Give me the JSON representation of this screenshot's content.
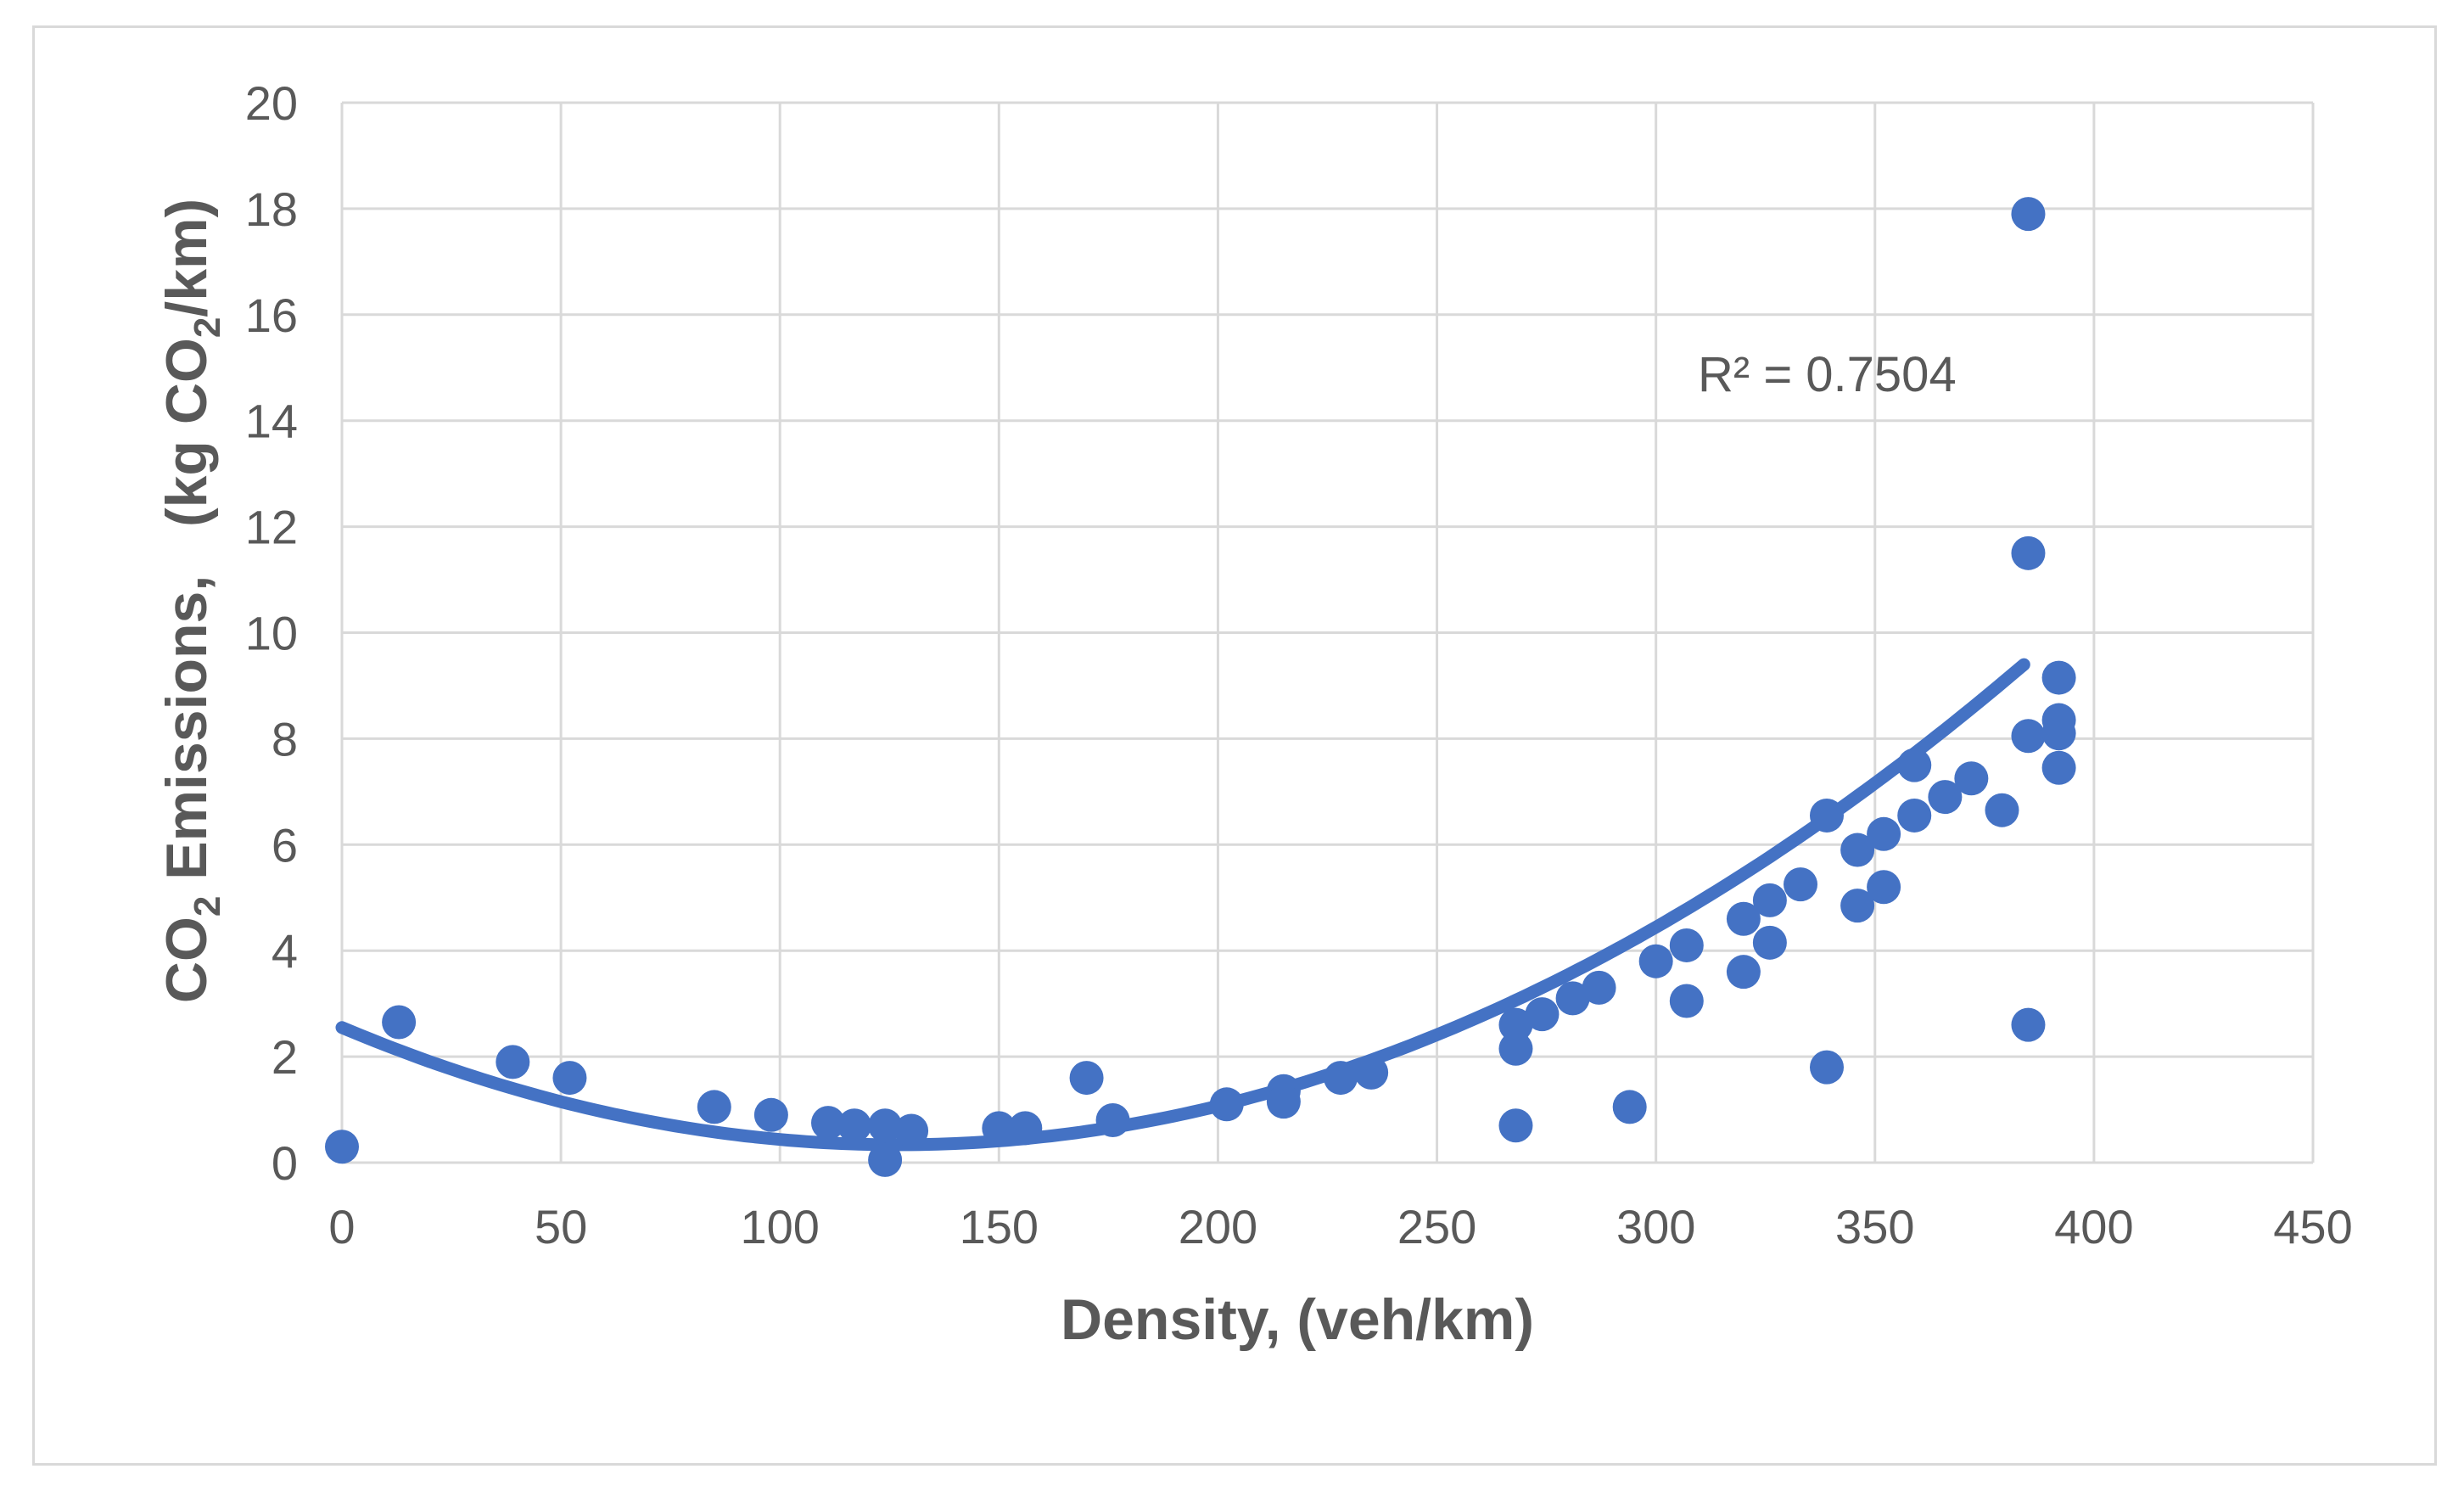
{
  "chart_data": {
    "type": "scatter",
    "title": "",
    "xlabel": "Density,  (veh/km)",
    "ylabel": {
      "prefix": "CO",
      "sub1": "2",
      "middle": " Emissions,   (kg CO",
      "sub2": "2",
      "suffix": "/km)"
    },
    "xlim": [
      0,
      450
    ],
    "ylim": [
      0,
      20
    ],
    "x_ticks": [
      "0",
      "50",
      "100",
      "150",
      "200",
      "250",
      "300",
      "350",
      "400",
      "450"
    ],
    "y_ticks": [
      "0",
      "2",
      "4",
      "6",
      "8",
      "10",
      "12",
      "14",
      "16",
      "18",
      "20"
    ],
    "grid": true,
    "series_color": "#4472c4",
    "annotation": "R² = 0.7504",
    "trendline": {
      "type": "polynomial-2",
      "coeffs": [
        0.0001372,
        -0.03485,
        2.55
      ],
      "x_range": [
        0,
        385
      ]
    },
    "points": [
      [
        0,
        0.3
      ],
      [
        13,
        2.65
      ],
      [
        39,
        1.9
      ],
      [
        52,
        1.6
      ],
      [
        85,
        1.05
      ],
      [
        98,
        0.9
      ],
      [
        111,
        0.75
      ],
      [
        117,
        0.7
      ],
      [
        124,
        0.7
      ],
      [
        124,
        0.05
      ],
      [
        130,
        0.6
      ],
      [
        150,
        0.65
      ],
      [
        156,
        0.65
      ],
      [
        170,
        1.6
      ],
      [
        176,
        0.8
      ],
      [
        202,
        1.1
      ],
      [
        215,
        1.35
      ],
      [
        215,
        1.15
      ],
      [
        228,
        1.6
      ],
      [
        235,
        1.7
      ],
      [
        268,
        2.6
      ],
      [
        268,
        2.15
      ],
      [
        268,
        0.7
      ],
      [
        274,
        2.8
      ],
      [
        281,
        3.1
      ],
      [
        287,
        3.3
      ],
      [
        294,
        1.05
      ],
      [
        300,
        3.8
      ],
      [
        307,
        4.1
      ],
      [
        307,
        3.05
      ],
      [
        320,
        4.6
      ],
      [
        320,
        3.6
      ],
      [
        326,
        4.95
      ],
      [
        326,
        4.15
      ],
      [
        333,
        5.25
      ],
      [
        339,
        6.55
      ],
      [
        339,
        1.8
      ],
      [
        346,
        5.9
      ],
      [
        346,
        4.85
      ],
      [
        352,
        6.2
      ],
      [
        352,
        5.2
      ],
      [
        359,
        7.5
      ],
      [
        359,
        6.55
      ],
      [
        366,
        6.9
      ],
      [
        372,
        7.25
      ],
      [
        379,
        6.65
      ],
      [
        385,
        17.9
      ],
      [
        385,
        11.5
      ],
      [
        385,
        8.05
      ],
      [
        385,
        2.6
      ],
      [
        392,
        9.15
      ],
      [
        392,
        8.35
      ],
      [
        392,
        8.1
      ],
      [
        392,
        7.45
      ]
    ]
  }
}
